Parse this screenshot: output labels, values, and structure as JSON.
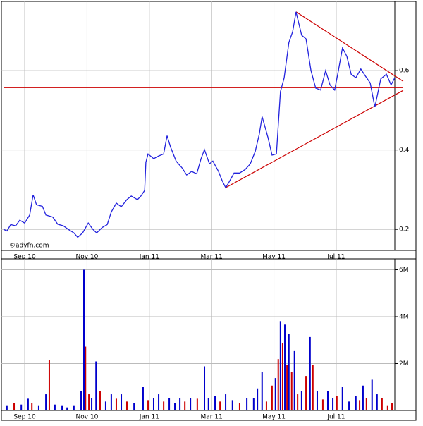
{
  "chart_data": [
    {
      "type": "line",
      "color": "#2222dd",
      "grid": true,
      "watermark": "©advfn.com",
      "x": [
        -0.68,
        -0.57,
        -0.45,
        -0.29,
        -0.16,
        0,
        0.16,
        0.27,
        0.38,
        0.57,
        0.68,
        0.9,
        1.06,
        1.24,
        1.4,
        1.58,
        1.7,
        1.86,
        2.04,
        2.19,
        2.31,
        2.49,
        2.65,
        2.78,
        2.94,
        3.1,
        3.28,
        3.42,
        3.62,
        3.73,
        3.85,
        3.89,
        3.96,
        4.14,
        4.3,
        4.46,
        4.57,
        4.68,
        4.86,
        5.05,
        5.2,
        5.36,
        5.52,
        5.66,
        5.77,
        5.93,
        6.04,
        6.22,
        6.33,
        6.45,
        6.56,
        6.72,
        6.9,
        7.08,
        7.24,
        7.4,
        7.53,
        7.62,
        7.81,
        7.94,
        8.08,
        8.21,
        8.33,
        8.48,
        8.6,
        8.71,
        8.89,
        9.03,
        9.19,
        9.34,
        9.5,
        9.66,
        9.8,
        9.95,
        10.07,
        10.2,
        10.34,
        10.48,
        10.63,
        10.79,
        10.93,
        11.09,
        11.24,
        11.43,
        11.61,
        11.76,
        11.88
      ],
      "values": [
        0.2,
        0.196,
        0.212,
        0.209,
        0.223,
        0.216,
        0.236,
        0.287,
        0.262,
        0.258,
        0.236,
        0.231,
        0.213,
        0.209,
        0.2,
        0.191,
        0.18,
        0.191,
        0.216,
        0.2,
        0.191,
        0.205,
        0.212,
        0.244,
        0.266,
        0.257,
        0.275,
        0.284,
        0.275,
        0.284,
        0.298,
        0.369,
        0.39,
        0.378,
        0.385,
        0.39,
        0.436,
        0.408,
        0.372,
        0.355,
        0.337,
        0.346,
        0.34,
        0.378,
        0.401,
        0.365,
        0.372,
        0.346,
        0.324,
        0.305,
        0.319,
        0.342,
        0.342,
        0.351,
        0.365,
        0.396,
        0.44,
        0.484,
        0.431,
        0.387,
        0.39,
        0.547,
        0.582,
        0.671,
        0.698,
        0.748,
        0.689,
        0.68,
        0.6,
        0.556,
        0.551,
        0.6,
        0.564,
        0.551,
        0.6,
        0.657,
        0.636,
        0.591,
        0.582,
        0.604,
        0.587,
        0.569,
        0.508,
        0.579,
        0.591,
        0.564,
        0.582
      ],
      "trendlines": [
        {
          "color": "#cc0000",
          "x": [
            -0.68,
            12.15
          ],
          "y": [
            0.557,
            0.557
          ]
        },
        {
          "color": "#cc0000",
          "x": [
            8.71,
            12.15
          ],
          "y": [
            0.748,
            0.573
          ]
        },
        {
          "color": "#cc0000",
          "x": [
            6.45,
            12.15
          ],
          "y": [
            0.305,
            0.55
          ]
        }
      ],
      "xlim": [
        -0.68,
        11.88
      ],
      "ylim": [
        0.147,
        0.769
      ],
      "yticks": [
        0.2,
        0.4,
        0.6
      ],
      "xticks": [
        {
          "value": 0,
          "label": "Sep 10"
        },
        {
          "value": 2,
          "label": "Nov 10"
        },
        {
          "value": 4,
          "label": "Jan 11"
        },
        {
          "value": 6,
          "label": "Mar 11"
        },
        {
          "value": 8,
          "label": "May 11"
        },
        {
          "value": 10,
          "label": "Jul 11"
        }
      ]
    },
    {
      "type": "bar",
      "grid": true,
      "x": [
        -0.57,
        -0.34,
        -0.11,
        0.11,
        0.23,
        0.45,
        0.68,
        0.79,
        0.97,
        1.2,
        1.36,
        1.58,
        1.81,
        1.9,
        1.95,
        2.06,
        2.15,
        2.29,
        2.42,
        2.6,
        2.78,
        2.94,
        3.1,
        3.28,
        3.51,
        3.8,
        3.96,
        4.14,
        4.3,
        4.46,
        4.64,
        4.82,
        4.98,
        5.14,
        5.32,
        5.54,
        5.77,
        5.9,
        6.11,
        6.27,
        6.45,
        6.67,
        6.9,
        7.13,
        7.35,
        7.47,
        7.62,
        7.76,
        7.94,
        8.05,
        8.14,
        8.21,
        8.28,
        8.35,
        8.42,
        8.48,
        8.57,
        8.66,
        8.76,
        8.89,
        9.03,
        9.16,
        9.25,
        9.39,
        9.57,
        9.73,
        9.89,
        10.02,
        10.2,
        10.41,
        10.63,
        10.75,
        10.86,
        10.97,
        11.15,
        11.31,
        11.47,
        11.65,
        11.79
      ],
      "values": [
        220000,
        310000,
        250000,
        500000,
        310000,
        220000,
        690000,
        2160000,
        250000,
        220000,
        130000,
        220000,
        840000,
        6000000,
        2720000,
        690000,
        530000,
        2090000,
        840000,
        380000,
        690000,
        500000,
        690000,
        380000,
        310000,
        1000000,
        440000,
        530000,
        690000,
        380000,
        530000,
        310000,
        530000,
        380000,
        530000,
        500000,
        1880000,
        530000,
        630000,
        380000,
        690000,
        440000,
        310000,
        530000,
        530000,
        940000,
        1630000,
        380000,
        1060000,
        1380000,
        2190000,
        3810000,
        2880000,
        3660000,
        1940000,
        3250000,
        1630000,
        2560000,
        690000,
        840000,
        1470000,
        3130000,
        1940000,
        840000,
        470000,
        840000,
        530000,
        630000,
        1000000,
        380000,
        630000,
        440000,
        1060000,
        530000,
        1310000,
        690000,
        530000,
        220000,
        310000
      ],
      "colors": [
        "#0000cc",
        "#cc0000",
        "#0000cc",
        "#0000cc",
        "#cc0000",
        "#0000cc",
        "#0000cc",
        "#cc0000",
        "#0000cc",
        "#0000cc",
        "#0000cc",
        "#0000cc",
        "#0000cc",
        "#0000cc",
        "#cc0000",
        "#cc0000",
        "#0000cc",
        "#0000cc",
        "#cc0000",
        "#0000cc",
        "#0000cc",
        "#cc0000",
        "#0000cc",
        "#cc0000",
        "#0000cc",
        "#0000cc",
        "#cc0000",
        "#0000cc",
        "#0000cc",
        "#cc0000",
        "#0000cc",
        "#0000cc",
        "#0000cc",
        "#cc0000",
        "#0000cc",
        "#cc0000",
        "#0000cc",
        "#0000cc",
        "#0000cc",
        "#cc0000",
        "#0000cc",
        "#0000cc",
        "#cc0000",
        "#0000cc",
        "#0000cc",
        "#0000cc",
        "#0000cc",
        "#cc0000",
        "#cc0000",
        "#0000cc",
        "#cc0000",
        "#0000cc",
        "#cc0000",
        "#0000cc",
        "#cc0000",
        "#0000cc",
        "#cc0000",
        "#0000cc",
        "#cc0000",
        "#0000cc",
        "#cc0000",
        "#0000cc",
        "#cc0000",
        "#0000cc",
        "#cc0000",
        "#0000cc",
        "#0000cc",
        "#cc0000",
        "#0000cc",
        "#0000cc",
        "#0000cc",
        "#cc0000",
        "#0000cc",
        "#cc0000",
        "#0000cc",
        "#0000cc",
        "#cc0000",
        "#cc0000",
        "#cc0000"
      ],
      "xlim": [
        -0.68,
        11.88
      ],
      "ylim": [
        0,
        6375000
      ],
      "yticks": [
        {
          "value": 2000000,
          "label": "2M"
        },
        {
          "value": 4000000,
          "label": "4M"
        },
        {
          "value": 6000000,
          "label": "6M"
        }
      ],
      "xticks": [
        {
          "value": 0,
          "label": "Sep 10"
        },
        {
          "value": 2,
          "label": "Nov 10"
        },
        {
          "value": 4,
          "label": "Jan 11"
        },
        {
          "value": 6,
          "label": "Mar 11"
        },
        {
          "value": 8,
          "label": "May 11"
        },
        {
          "value": 10,
          "label": "Jul 11"
        }
      ]
    }
  ]
}
